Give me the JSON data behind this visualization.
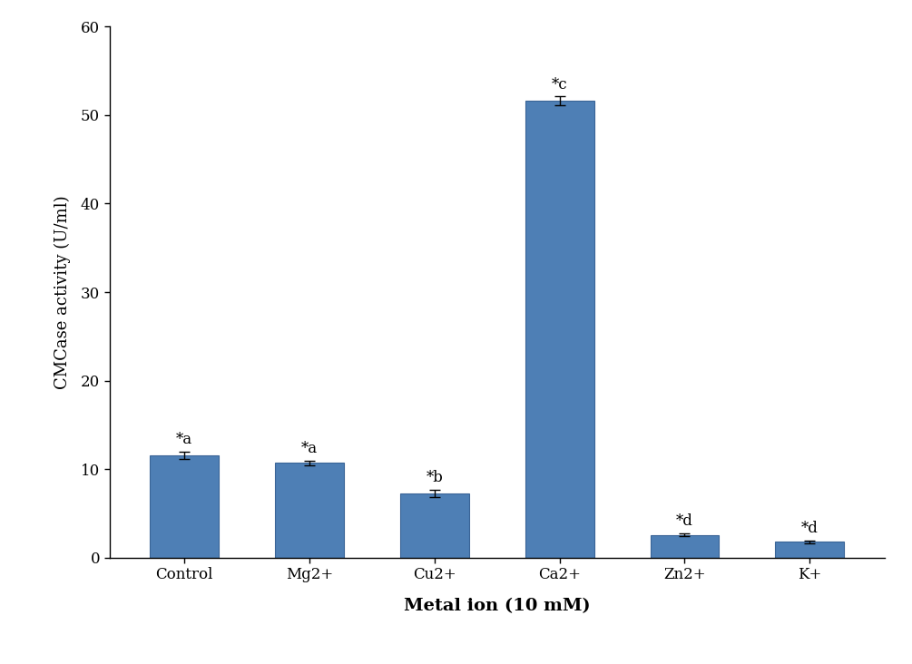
{
  "categories": [
    "Control",
    "Mg2+",
    "Cu2+",
    "Ca2+",
    "Zn2+",
    "K+"
  ],
  "values": [
    11.6,
    10.7,
    7.3,
    51.6,
    2.6,
    1.8
  ],
  "errors": [
    0.4,
    0.3,
    0.4,
    0.5,
    0.2,
    0.15
  ],
  "annotations": [
    "*a",
    "*a",
    "*b",
    "*c",
    "*d",
    "*d"
  ],
  "bar_color": "#4e7fb5",
  "bar_edgecolor": "#3a6496",
  "ylabel": "CMCase activity (U/ml)",
  "xlabel": "Metal ion (10 mM)",
  "ylim": [
    0,
    60
  ],
  "yticks": [
    0,
    10,
    20,
    30,
    40,
    50,
    60
  ],
  "background_color": "#ffffff",
  "xlabel_fontsize": 14,
  "ylabel_fontsize": 13,
  "tick_fontsize": 12,
  "annotation_fontsize": 12,
  "bar_width": 0.55
}
